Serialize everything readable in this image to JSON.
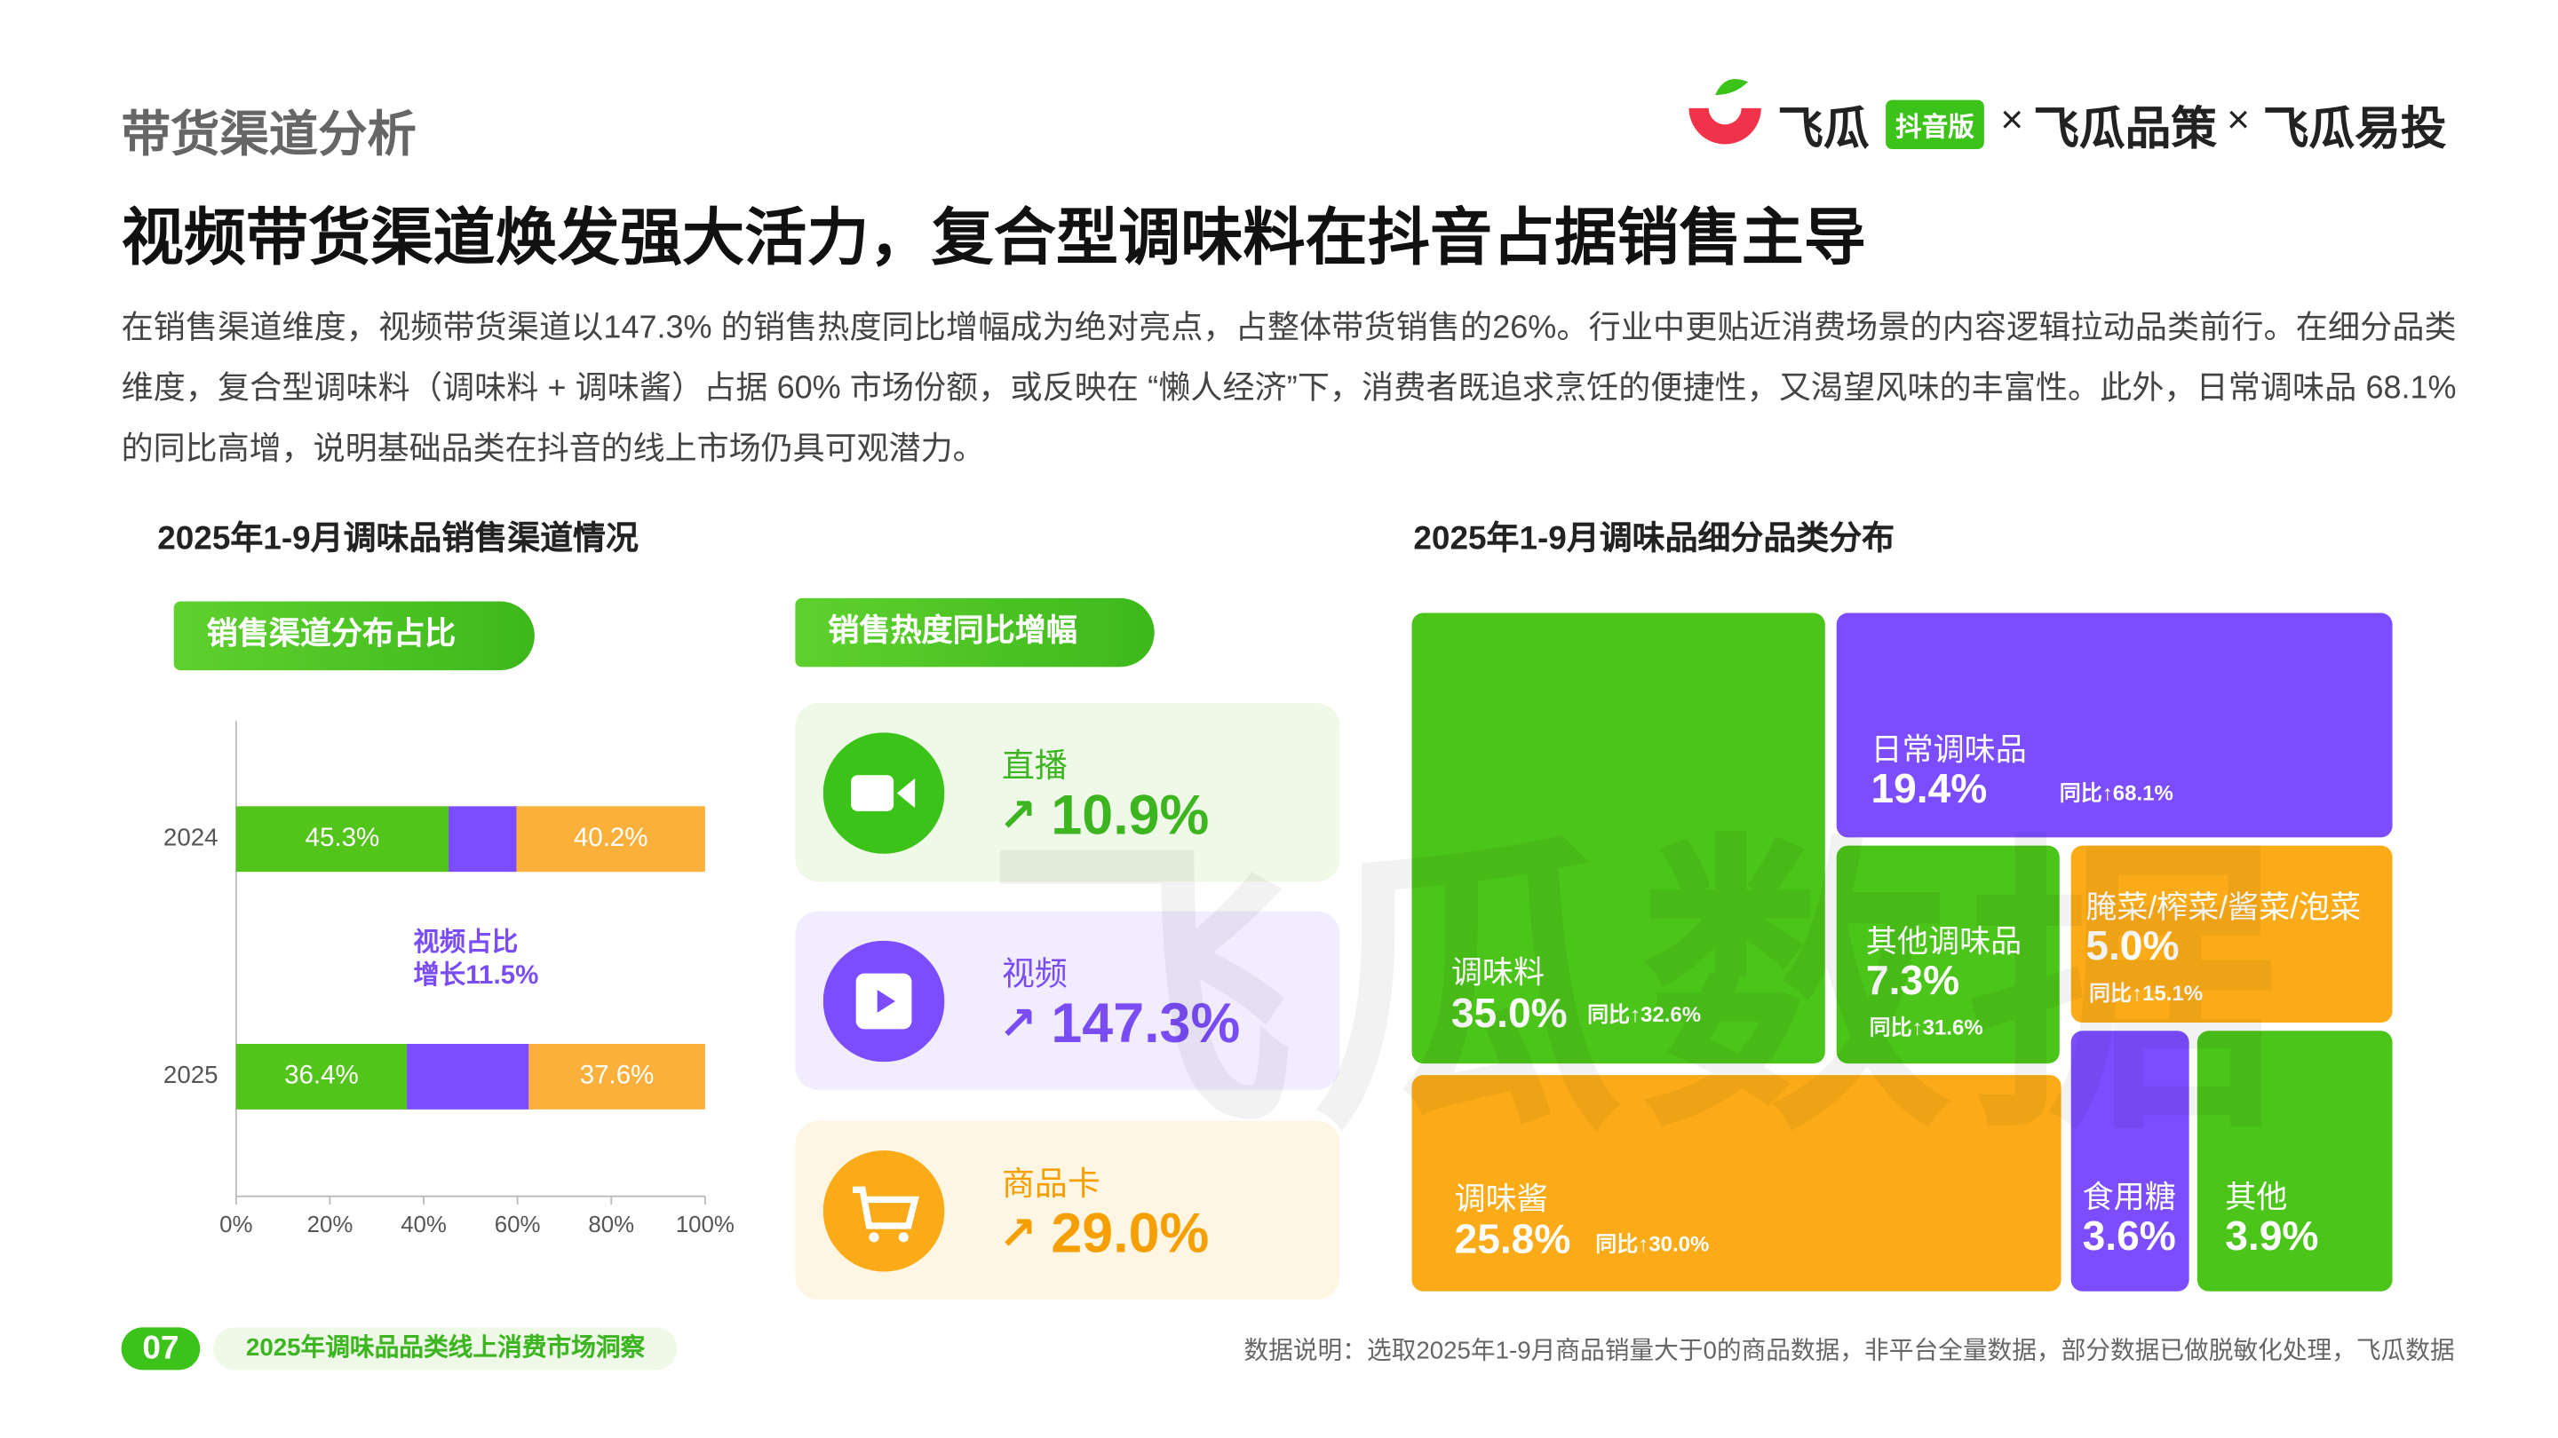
{
  "header": {
    "section": "带货渠道分析",
    "title": "视频带货渠道焕发强大活力，复合型调味料在抖音占据销售主导",
    "paragraph": "在销售渠道维度，视频带货渠道以147.3% 的销售热度同比增幅成为绝对亮点，占整体带货销售的26%。行业中更贴近消费场景的内容逻辑拉动品类前行。在细分品类维度，复合型调味料（调味料 + 调味酱）占据 60% 市场份额，或反映在 “懒人经济”下，消费者既追求烹饪的便捷性，又渴望风味的丰富性。此外，日常调味品 68.1% 的同比高增，说明基础品类在抖音的线上市场仍具可观潜力。"
  },
  "logo": {
    "brand": "飞瓜",
    "badge": "抖音版",
    "separator": "×",
    "product_2": "飞瓜品策",
    "product_3": "飞瓜易投"
  },
  "watermark": "飞瓜数据",
  "channel_panel": {
    "share_tag": "销售渠道分布占比",
    "growth_tag": "销售热度同比增幅",
    "cards": [
      {
        "label": "直播",
        "value": "10.9%"
      },
      {
        "label": "视频",
        "value": "147.3%"
      },
      {
        "label": "商品卡",
        "value": "29.0%"
      }
    ]
  },
  "chart_data": [
    {
      "type": "bar",
      "orientation": "horizontal",
      "stacked": true,
      "title": "2025年1-9月调味品销售渠道情况",
      "categories": [
        "2024",
        "2025"
      ],
      "series": [
        {
          "color": "#52c41a",
          "values": [
            45.3,
            36.4
          ],
          "value_labels": [
            "45.3%",
            "36.4%"
          ]
        },
        {
          "color": "#7c4dff",
          "values": [
            14.5,
            26.0
          ]
        },
        {
          "color": "#fbb03b",
          "values": [
            40.2,
            37.6
          ],
          "value_labels": [
            "40.2%",
            "37.6%"
          ]
        }
      ],
      "annotation": [
        "视频占比",
        "增长11.5%"
      ],
      "xlim": [
        0,
        100
      ],
      "xticks": [
        {
          "value": 0,
          "label": "0%"
        },
        {
          "value": 20,
          "label": "20%"
        },
        {
          "value": 40,
          "label": "40%"
        },
        {
          "value": 60,
          "label": "60%"
        },
        {
          "value": 80,
          "label": "80%"
        },
        {
          "value": 100,
          "label": "100%"
        }
      ]
    },
    {
      "type": "treemap",
      "title": "2025年1-9月调味品细分品类分布",
      "categories": [
        "调味料",
        "调味酱",
        "日常调味品",
        "其他调味品",
        "腌菜/榨菜/酱菜/泡菜",
        "食用糖",
        "其他"
      ],
      "values": [
        35.0,
        25.8,
        19.4,
        7.3,
        5.0,
        3.6,
        3.9
      ],
      "value_labels": [
        "35.0%",
        "25.8%",
        "19.4%",
        "7.3%",
        "5.0%",
        "3.6%",
        "3.9%"
      ],
      "annotations": [
        "同比↑32.6%",
        "同比↑30.0%",
        "同比↑68.1%",
        "同比↑31.6%",
        "同比↑15.1%",
        null,
        null
      ],
      "colors": [
        "#4cc51a",
        "#fbab17",
        "#7c4dff",
        "#4cc51a",
        "#fbab17",
        "#7c4dff",
        "#4cc51a"
      ]
    }
  ],
  "footer": {
    "page": "07",
    "report": "2025年调味品品类线上消费市场洞察",
    "note": "数据说明：选取2025年1-9月商品销量大于0的商品数据，非平台全量数据，部分数据已做脱敏化处理，飞瓜数据"
  }
}
